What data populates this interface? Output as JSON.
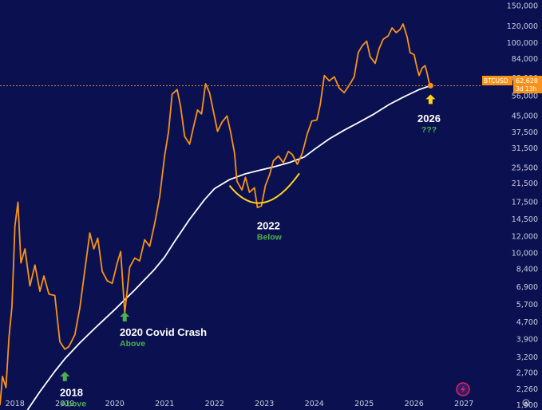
{
  "chart_data": {
    "type": "line",
    "scale": "log",
    "grid": false,
    "y_ticks": [
      "150,000",
      "120,000",
      "100,000",
      "84,000",
      "68,000",
      "56,000",
      "45,000",
      "37,500",
      "31,500",
      "25,500",
      "21,500",
      "17,500",
      "14,500",
      "12,000",
      "10,000",
      "8,400",
      "6,900",
      "5,700",
      "4,700",
      "3,900",
      "3,200",
      "2,700",
      "2,260",
      "1,900"
    ],
    "x_ticks": [
      "2018",
      "2019",
      "2020",
      "2021",
      "2022",
      "2023",
      "2024",
      "2025",
      "2026",
      "2027"
    ],
    "ylim": [
      1800,
      160000
    ],
    "xlim": [
      2017.7,
      2027.3
    ],
    "series": [
      {
        "color": "#f7931a",
        "points": [
          [
            2017.7,
            1900
          ],
          [
            2017.75,
            2600
          ],
          [
            2017.82,
            2300
          ],
          [
            2017.88,
            4000
          ],
          [
            2017.94,
            5600
          ],
          [
            2018.0,
            13500
          ],
          [
            2018.06,
            17500
          ],
          [
            2018.12,
            9000
          ],
          [
            2018.2,
            10500
          ],
          [
            2018.3,
            7000
          ],
          [
            2018.4,
            8800
          ],
          [
            2018.5,
            6600
          ],
          [
            2018.58,
            7800
          ],
          [
            2018.68,
            6400
          ],
          [
            2018.8,
            6300
          ],
          [
            2018.9,
            3800
          ],
          [
            2019.0,
            3500
          ],
          [
            2019.08,
            3600
          ],
          [
            2019.2,
            4100
          ],
          [
            2019.3,
            5500
          ],
          [
            2019.42,
            9000
          ],
          [
            2019.5,
            12500
          ],
          [
            2019.58,
            10500
          ],
          [
            2019.66,
            11800
          ],
          [
            2019.75,
            8200
          ],
          [
            2019.85,
            7400
          ],
          [
            2019.95,
            7200
          ],
          [
            2020.05,
            9000
          ],
          [
            2020.12,
            10200
          ],
          [
            2020.2,
            5200
          ],
          [
            2020.3,
            8600
          ],
          [
            2020.4,
            9500
          ],
          [
            2020.5,
            9200
          ],
          [
            2020.6,
            11600
          ],
          [
            2020.7,
            10800
          ],
          [
            2020.8,
            13800
          ],
          [
            2020.9,
            18500
          ],
          [
            2021.0,
            29000
          ],
          [
            2021.08,
            38000
          ],
          [
            2021.15,
            57000
          ],
          [
            2021.25,
            60000
          ],
          [
            2021.32,
            50000
          ],
          [
            2021.4,
            36000
          ],
          [
            2021.5,
            33000
          ],
          [
            2021.58,
            40000
          ],
          [
            2021.66,
            48000
          ],
          [
            2021.74,
            46000
          ],
          [
            2021.82,
            64000
          ],
          [
            2021.9,
            58000
          ],
          [
            2021.98,
            47000
          ],
          [
            2022.06,
            38000
          ],
          [
            2022.15,
            42000
          ],
          [
            2022.25,
            45000
          ],
          [
            2022.32,
            38000
          ],
          [
            2022.4,
            30000
          ],
          [
            2022.45,
            22000
          ],
          [
            2022.55,
            20000
          ],
          [
            2022.62,
            23000
          ],
          [
            2022.7,
            19500
          ],
          [
            2022.8,
            20500
          ],
          [
            2022.86,
            16500
          ],
          [
            2022.94,
            16800
          ],
          [
            2023.02,
            21000
          ],
          [
            2023.1,
            23500
          ],
          [
            2023.18,
            27500
          ],
          [
            2023.28,
            29000
          ],
          [
            2023.38,
            27000
          ],
          [
            2023.48,
            30500
          ],
          [
            2023.56,
            29500
          ],
          [
            2023.66,
            26500
          ],
          [
            2023.76,
            30000
          ],
          [
            2023.86,
            37000
          ],
          [
            2023.95,
            42500
          ],
          [
            2024.05,
            43000
          ],
          [
            2024.12,
            51000
          ],
          [
            2024.2,
            70000
          ],
          [
            2024.3,
            66000
          ],
          [
            2024.4,
            69000
          ],
          [
            2024.5,
            61000
          ],
          [
            2024.6,
            58000
          ],
          [
            2024.7,
            63000
          ],
          [
            2024.8,
            69000
          ],
          [
            2024.88,
            90000
          ],
          [
            2024.96,
            97000
          ],
          [
            2025.05,
            102000
          ],
          [
            2025.12,
            86000
          ],
          [
            2025.22,
            80000
          ],
          [
            2025.3,
            94000
          ],
          [
            2025.38,
            104000
          ],
          [
            2025.48,
            108000
          ],
          [
            2025.56,
            118000
          ],
          [
            2025.64,
            112000
          ],
          [
            2025.72,
            116000
          ],
          [
            2025.78,
            123000
          ],
          [
            2025.86,
            107000
          ],
          [
            2025.92,
            90000
          ],
          [
            2026.0,
            88000
          ],
          [
            2026.06,
            76000
          ],
          [
            2026.1,
            70000
          ],
          [
            2026.16,
            76000
          ],
          [
            2026.22,
            78000
          ],
          [
            2026.26,
            72000
          ],
          [
            2026.3,
            65000
          ],
          [
            2026.33,
            62628
          ]
        ]
      },
      {
        "color": "#ffffff",
        "points": [
          [
            2018.25,
            1800
          ],
          [
            2018.5,
            2200
          ],
          [
            2018.8,
            2750
          ],
          [
            2019.0,
            3150
          ],
          [
            2019.3,
            3750
          ],
          [
            2019.6,
            4400
          ],
          [
            2020.0,
            5400
          ],
          [
            2020.4,
            6700
          ],
          [
            2020.8,
            8400
          ],
          [
            2021.0,
            9600
          ],
          [
            2021.2,
            11400
          ],
          [
            2021.5,
            14500
          ],
          [
            2021.8,
            18000
          ],
          [
            2022.0,
            20300
          ],
          [
            2022.3,
            22400
          ],
          [
            2022.6,
            23800
          ],
          [
            2022.9,
            24800
          ],
          [
            2023.2,
            25800
          ],
          [
            2023.5,
            27000
          ],
          [
            2023.8,
            28700
          ],
          [
            2024.0,
            31200
          ],
          [
            2024.3,
            35000
          ],
          [
            2024.6,
            38500
          ],
          [
            2024.9,
            42000
          ],
          [
            2025.2,
            46000
          ],
          [
            2025.5,
            51000
          ],
          [
            2025.8,
            55500
          ],
          [
            2026.1,
            60000
          ],
          [
            2026.33,
            62628
          ]
        ]
      }
    ],
    "current_price": {
      "ticker": "BTCUSD",
      "value": "62,628",
      "countdown": "3d 13h"
    },
    "annotations": [
      {
        "year": "2018",
        "label": "Above",
        "label_color": "#4caf50",
        "arrow": "up",
        "arrow_color": "#4caf50"
      },
      {
        "year": "2020 Covid Crash",
        "label": "Above",
        "label_color": "#4caf50",
        "arrow": "up",
        "arrow_color": "#4caf50"
      },
      {
        "year": "2022",
        "label": "Below",
        "label_color": "#4caf50",
        "arrow": "none"
      },
      {
        "year": "2026",
        "label": "???",
        "label_color": "#4caf50",
        "arrow": "up",
        "arrow_color": "#ffd21f"
      }
    ]
  }
}
